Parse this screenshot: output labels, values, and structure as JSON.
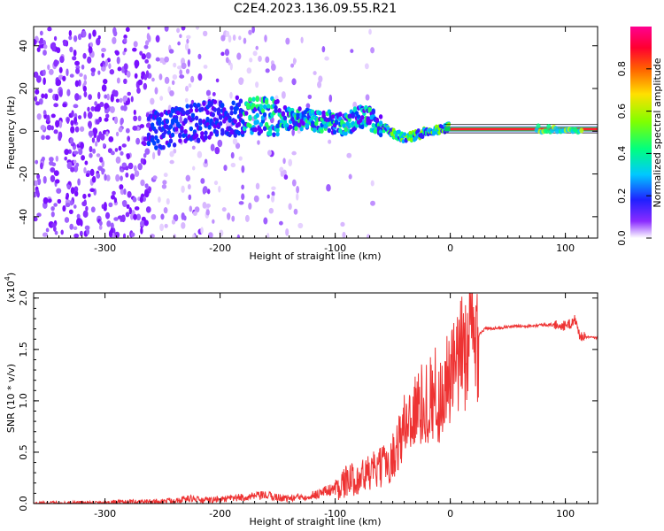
{
  "title": "C2E4.2023.136.09.55.R21",
  "chart_data": [
    {
      "type": "heatmap",
      "name": "spectrogram",
      "xlabel": "Height of straight line (km)",
      "ylabel": "Frequency (Hz)",
      "xlim": [
        -362,
        128
      ],
      "ylim": [
        -50,
        49
      ],
      "xticks": [
        -300,
        -200,
        -100,
        0,
        100
      ],
      "xtick_labels": [
        "-300",
        "-200",
        "-100",
        "0",
        "100"
      ],
      "yticks": [
        -40,
        -20,
        0,
        20,
        40
      ],
      "ytick_labels": [
        "-40",
        "-20",
        "0",
        "20",
        "40"
      ],
      "colorbar": {
        "label": "Normalized spectral amplitude",
        "range": [
          0,
          1
        ],
        "ticks": [
          0.0,
          0.2,
          0.4,
          0.6,
          0.8
        ],
        "tick_labels": [
          "0.0",
          "0.2",
          "0.4",
          "0.6",
          "0.8"
        ],
        "colors": [
          "#ffffff",
          "#6a00ff",
          "#0030ff",
          "#00e0ff",
          "#00ff40",
          "#c8ff00",
          "#ffb000",
          "#ff0000",
          "#ff00a0"
        ]
      },
      "track": {
        "x": [
          -260,
          -240,
          -220,
          -200,
          -180,
          -160,
          -140,
          -120,
          -100,
          -90,
          -80,
          -70,
          -60,
          -50,
          -40,
          -30,
          -20,
          -10,
          0,
          20,
          50,
          80,
          100,
          128
        ],
        "y": [
          0,
          2,
          4,
          6,
          7,
          7,
          6,
          5,
          4,
          3,
          7,
          6,
          2,
          -1,
          -3,
          -2,
          0,
          1,
          2,
          1,
          1,
          1,
          1,
          1
        ]
      }
    },
    {
      "type": "line",
      "name": "snr",
      "xlabel": "Height of straight line (km)",
      "ylabel": "SNR (10 * v/v)",
      "scale_label": "(x10",
      "scale_exponent": "4",
      "scale_close": ")",
      "xlim": [
        -362,
        128
      ],
      "ylim": [
        0,
        2.05
      ],
      "xticks": [
        -300,
        -200,
        -100,
        0,
        100
      ],
      "xtick_labels": [
        "-300",
        "-200",
        "-100",
        "0",
        "100"
      ],
      "yticks": [
        0.0,
        0.5,
        1.0,
        1.5,
        2.0
      ],
      "ytick_labels": [
        "0.0",
        "0.5",
        "1.0",
        "1.5",
        "2.0"
      ],
      "line_color": "#ee3333",
      "series": [
        {
          "name": "SNR",
          "x": [
            -362,
            -300,
            -250,
            -225,
            -215,
            -200,
            -160,
            -150,
            -140,
            -120,
            -100,
            -90,
            -80,
            -70,
            -60,
            -50,
            -45,
            -40,
            -35,
            -30,
            -25,
            -20,
            -15,
            -12,
            -10,
            -5,
            0,
            5,
            10,
            15,
            20,
            25,
            30,
            40,
            50,
            60,
            70,
            80,
            90,
            100,
            105,
            108,
            110,
            112,
            115,
            120,
            128
          ],
          "y": [
            0.0,
            0.01,
            0.02,
            0.05,
            0.03,
            0.04,
            0.08,
            0.06,
            0.05,
            0.08,
            0.15,
            0.22,
            0.25,
            0.3,
            0.35,
            0.45,
            0.6,
            0.75,
            0.85,
            0.9,
            0.95,
            1.0,
            1.05,
            1.1,
            0.95,
            1.15,
            1.2,
            1.3,
            1.45,
            1.55,
            1.6,
            1.65,
            1.7,
            1.71,
            1.72,
            1.73,
            1.73,
            1.74,
            1.74,
            1.73,
            1.75,
            1.8,
            1.73,
            1.65,
            1.62,
            1.62,
            1.61
          ]
        }
      ]
    }
  ]
}
